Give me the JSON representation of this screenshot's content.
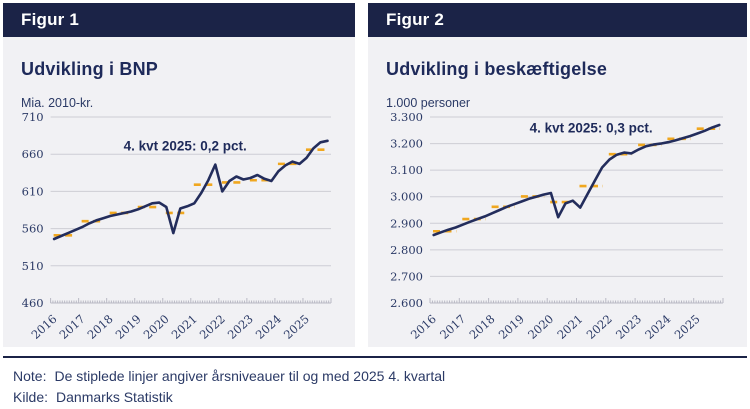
{
  "colors": {
    "navy": "#232D5C",
    "header_bg": "#1B2347",
    "amber": "#F0A71F",
    "panel_bg": "#F1F1F4",
    "grid": "#CDCDD5",
    "axis": "#B9B9C4",
    "tick_text": "#2B3A66"
  },
  "note": {
    "label": "Note:",
    "text": "De stiplede linjer angiver årsniveauer til og med 2025 4. kvartal"
  },
  "source": {
    "label": "Kilde:",
    "text": "Danmarks Statistik"
  },
  "chart_data": [
    {
      "type": "line",
      "panel_header": "Figur 1",
      "title": "Udvikling i BNP",
      "unit_label": "Mia. 2010-kr.",
      "ylim": [
        460,
        710
      ],
      "yticks": [
        460,
        510,
        560,
        610,
        660,
        710
      ],
      "ytick_labels": [
        "460",
        "510",
        "560",
        "610",
        "660",
        "710"
      ],
      "x_years": [
        "2016",
        "2017",
        "2018",
        "2019",
        "2020",
        "2021",
        "2022",
        "2023",
        "2024",
        "2025"
      ],
      "x_frequency": "quarterly",
      "grid": "horizontal",
      "legend": "none",
      "series": [
        {
          "name": "BNP, kvartalsvis",
          "style": "solid",
          "color_key": "navy",
          "values": [
            546,
            550,
            554,
            558,
            562,
            567,
            571,
            574,
            577,
            579,
            581,
            583,
            586,
            590,
            594,
            595,
            589,
            554,
            587,
            590,
            594,
            608,
            625,
            646,
            610,
            624,
            630,
            626,
            628,
            632,
            627,
            624,
            637,
            645,
            650,
            647,
            655,
            668,
            676,
            678
          ]
        },
        {
          "name": "Årsniveau (stiplet linje)",
          "style": "dashed",
          "color_key": "amber",
          "values": [
            551,
            570,
            581,
            589,
            581,
            619,
            622,
            625,
            647,
            666
          ]
        }
      ],
      "annotation": {
        "text": "4. kvt 2025: 0,2 pct.",
        "fx": 0.48,
        "y": 665
      }
    },
    {
      "type": "line",
      "panel_header": "Figur 2",
      "title": "Udvikling i beskæftigelse",
      "unit_label": "1.000 personer",
      "ylim": [
        2600,
        3300
      ],
      "yticks": [
        2600,
        2700,
        2800,
        2900,
        3000,
        3100,
        3200,
        3300
      ],
      "ytick_labels": [
        "2.600",
        "2.700",
        "2.800",
        "2.900",
        "3.000",
        "3.100",
        "3.200",
        "3.300"
      ],
      "x_years": [
        "2016",
        "2017",
        "2018",
        "2019",
        "2020",
        "2021",
        "2022",
        "2023",
        "2024",
        "2025"
      ],
      "x_frequency": "quarterly",
      "grid": "horizontal",
      "legend": "none",
      "series": [
        {
          "name": "Beskæftigelse, kvartalsvis",
          "style": "solid",
          "color_key": "navy",
          "values": [
            2856,
            2866,
            2876,
            2884,
            2895,
            2906,
            2916,
            2926,
            2938,
            2950,
            2962,
            2972,
            2982,
            2992,
            3000,
            3008,
            3014,
            2923,
            2975,
            2985,
            2959,
            3010,
            3060,
            3110,
            3140,
            3158,
            3166,
            3163,
            3178,
            3190,
            3196,
            3200,
            3205,
            3212,
            3220,
            3228,
            3238,
            3248,
            3260,
            3270
          ]
        },
        {
          "name": "Årsniveau (stiplet linje)",
          "style": "dashed",
          "color_key": "amber",
          "values": [
            2870,
            2916,
            2962,
            3001,
            2980,
            3040,
            3160,
            3195,
            3218,
            3256
          ]
        }
      ],
      "annotation": {
        "text": "4. kvt 2025: 0,3 pct.",
        "fx": 0.55,
        "y": 3242
      }
    }
  ]
}
